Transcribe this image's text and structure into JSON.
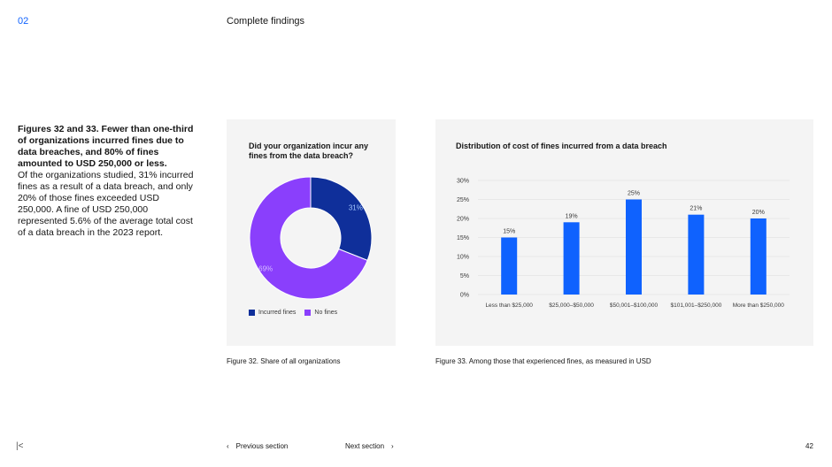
{
  "header": {
    "section_number": "02",
    "title": "Complete findings"
  },
  "intro": {
    "heading": "Figures 32 and 33. Fewer than one-third of organizations incurred fines due to data breaches, and 80% of fines amounted to USD 250,000 or less.",
    "body": "Of the organizations studied, 31% incurred fines as a result of a data breach, and only 20% of those fines exceeded USD 250,000. A fine of USD 250,000 represented 5.6% of the average total cost of a data breach in the 2023 report."
  },
  "colors": {
    "incurred": "#0f2f9a",
    "no_fines": "#8a3ffc",
    "bar": "#0f62fe",
    "accent": "#0f62fe"
  },
  "chart_data": [
    {
      "type": "pie",
      "title": "Did your organization incur any fines from the data breach?",
      "categories": [
        "Incurred fines",
        "No fines"
      ],
      "values": [
        31,
        69
      ],
      "data_labels": [
        "31%",
        "69%"
      ],
      "legend": "bottom-left"
    },
    {
      "type": "bar",
      "title": "Distribution of cost of fines incurred from a data breach",
      "categories": [
        "Less than $25,000",
        "$25,000–$50,000",
        "$50,001–$100,000",
        "$101,001–$250,000",
        "More than $250,000"
      ],
      "values": [
        15,
        19,
        25,
        21,
        20
      ],
      "data_labels": [
        "15%",
        "19%",
        "25%",
        "21%",
        "20%"
      ],
      "y_ticks": [
        "0%",
        "5%",
        "10%",
        "15%",
        "20%",
        "25%",
        "30%"
      ],
      "ylim": [
        0,
        30
      ],
      "grid": true
    }
  ],
  "captions": {
    "fig32": "Figure 32. Share of all organizations",
    "fig33": "Figure 33. Among those that experienced fines, as measured in USD"
  },
  "footer": {
    "first_icon": "first-page-icon",
    "prev_label": "Previous section",
    "next_label": "Next section",
    "page_number": "42"
  }
}
